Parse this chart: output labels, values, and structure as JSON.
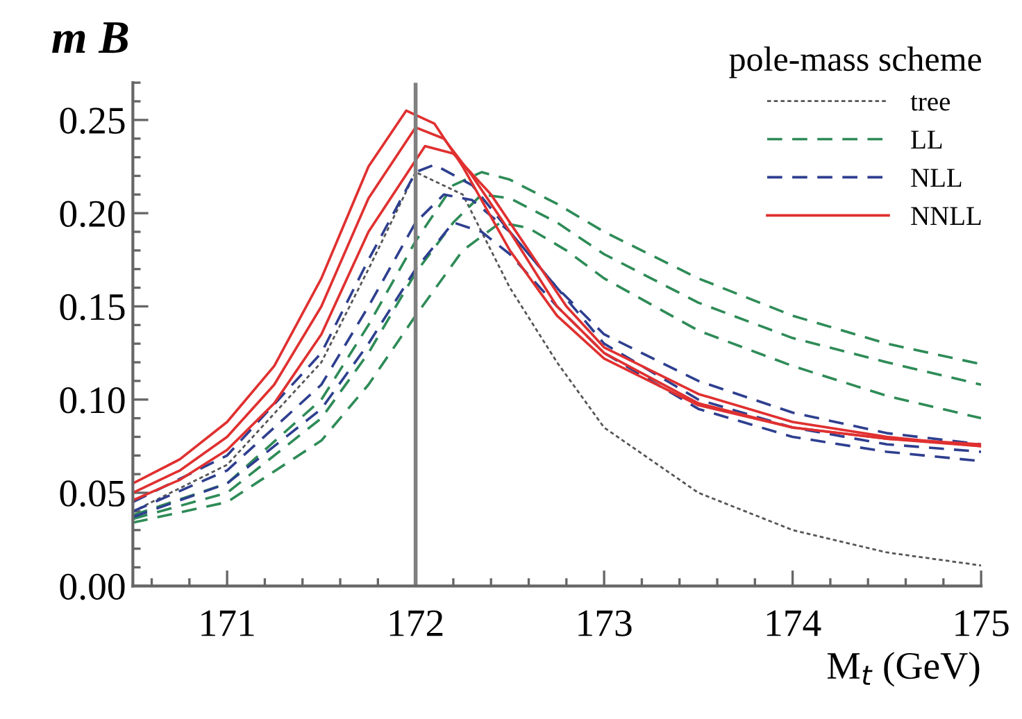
{
  "chart_data": {
    "type": "line",
    "ylabel": "m B",
    "xlabel": "M$_{t}$ (GeV)",
    "legend_title": "pole-mass scheme",
    "legend": "top right",
    "grid": false,
    "xlim": [
      170.5,
      175
    ],
    "xticks": [
      171,
      172,
      173,
      174,
      175
    ],
    "ylim": [
      0,
      0.27
    ],
    "yticks": [
      {
        "value": 0,
        "label": "0.00"
      },
      0.05,
      {
        "value": 0.1,
        "label": "0.10"
      },
      0.15,
      {
        "value": 0.2,
        "label": "0.20"
      },
      0.25
    ],
    "ref_lines": [
      {
        "axis": "x",
        "value": 172,
        "color": "#808080"
      }
    ],
    "series": [
      {
        "name": "tree",
        "color": "#555555",
        "line_style": "dotted",
        "x": [
          170.5,
          171,
          171.5,
          171.75,
          172,
          172.25,
          172.5,
          172.75,
          173,
          173.5,
          174,
          174.5,
          175
        ],
        "values": [
          0.04,
          0.065,
          0.12,
          0.17,
          0.222,
          0.21,
          0.16,
          0.12,
          0.085,
          0.05,
          0.03,
          0.018,
          0.011
        ]
      },
      {
        "name": "LL",
        "color": "#2e8b57",
        "line_style": "dashed",
        "x": [
          170.5,
          171,
          171.5,
          171.75,
          172,
          172.2,
          172.35,
          172.5,
          172.75,
          173,
          173.5,
          174,
          174.5,
          175
        ],
        "values": [
          0.038,
          0.055,
          0.1,
          0.14,
          0.185,
          0.215,
          0.222,
          0.218,
          0.205,
          0.19,
          0.165,
          0.145,
          0.13,
          0.119
        ]
      },
      {
        "color": "#2e8b57",
        "line_style": "dashed",
        "x": [
          170.5,
          171,
          171.5,
          171.75,
          172,
          172.2,
          172.35,
          172.5,
          172.75,
          173,
          173.5,
          174,
          174.5,
          175
        ],
        "values": [
          0.036,
          0.05,
          0.09,
          0.125,
          0.168,
          0.195,
          0.21,
          0.208,
          0.195,
          0.178,
          0.152,
          0.133,
          0.12,
          0.108
        ]
      },
      {
        "color": "#2e8b57",
        "line_style": "dashed",
        "x": [
          170.5,
          171,
          171.5,
          171.75,
          172,
          172.25,
          172.45,
          172.6,
          172.8,
          173,
          173.5,
          174,
          174.5,
          175
        ],
        "values": [
          0.034,
          0.045,
          0.078,
          0.108,
          0.145,
          0.18,
          0.195,
          0.192,
          0.18,
          0.165,
          0.137,
          0.118,
          0.102,
          0.09
        ]
      },
      {
        "name": "NLL",
        "color": "#2e3f8f",
        "line_style": "dashed",
        "x": [
          170.5,
          171,
          171.5,
          171.75,
          172,
          172.1,
          172.3,
          172.5,
          172.75,
          173,
          173.5,
          174,
          174.5,
          175
        ],
        "values": [
          0.045,
          0.07,
          0.125,
          0.175,
          0.222,
          0.226,
          0.215,
          0.19,
          0.16,
          0.135,
          0.11,
          0.093,
          0.082,
          0.076
        ]
      },
      {
        "color": "#2e3f8f",
        "line_style": "dashed",
        "x": [
          170.5,
          171,
          171.5,
          171.75,
          172,
          172.15,
          172.3,
          172.5,
          172.75,
          173,
          173.5,
          174,
          174.5,
          175
        ],
        "values": [
          0.04,
          0.062,
          0.108,
          0.15,
          0.195,
          0.21,
          0.207,
          0.19,
          0.16,
          0.13,
          0.1,
          0.085,
          0.076,
          0.072
        ]
      },
      {
        "color": "#2e3f8f",
        "line_style": "dashed",
        "x": [
          170.5,
          171,
          171.5,
          171.75,
          172,
          172.2,
          172.35,
          172.5,
          172.75,
          173,
          173.5,
          174,
          174.5,
          175
        ],
        "values": [
          0.037,
          0.055,
          0.095,
          0.13,
          0.17,
          0.195,
          0.19,
          0.178,
          0.15,
          0.125,
          0.095,
          0.08,
          0.072,
          0.067
        ]
      },
      {
        "name": "NNLL",
        "color": "#e03030",
        "line_style": "solid",
        "x": [
          170.5,
          170.75,
          171,
          171.25,
          171.5,
          171.75,
          171.95,
          172.1,
          172.25,
          172.5,
          172.75,
          173,
          173.5,
          174,
          174.5,
          175
        ],
        "values": [
          0.055,
          0.068,
          0.088,
          0.118,
          0.165,
          0.225,
          0.255,
          0.248,
          0.225,
          0.18,
          0.145,
          0.122,
          0.097,
          0.085,
          0.079,
          0.076
        ]
      },
      {
        "color": "#e03030",
        "line_style": "solid",
        "x": [
          170.5,
          170.75,
          171,
          171.25,
          171.5,
          171.75,
          172,
          172.15,
          172.3,
          172.5,
          172.75,
          173,
          173.5,
          174,
          174.5,
          175
        ],
        "values": [
          0.05,
          0.062,
          0.08,
          0.108,
          0.15,
          0.208,
          0.246,
          0.24,
          0.22,
          0.19,
          0.15,
          0.125,
          0.098,
          0.085,
          0.079,
          0.075
        ]
      },
      {
        "color": "#e03030",
        "line_style": "solid",
        "x": [
          170.5,
          170.75,
          171,
          171.25,
          171.5,
          171.75,
          172.05,
          172.2,
          172.4,
          172.6,
          172.8,
          173,
          173.5,
          174,
          174.5,
          175
        ],
        "values": [
          0.046,
          0.057,
          0.073,
          0.098,
          0.135,
          0.19,
          0.236,
          0.232,
          0.21,
          0.18,
          0.15,
          0.128,
          0.103,
          0.088,
          0.08,
          0.075
        ]
      }
    ]
  }
}
